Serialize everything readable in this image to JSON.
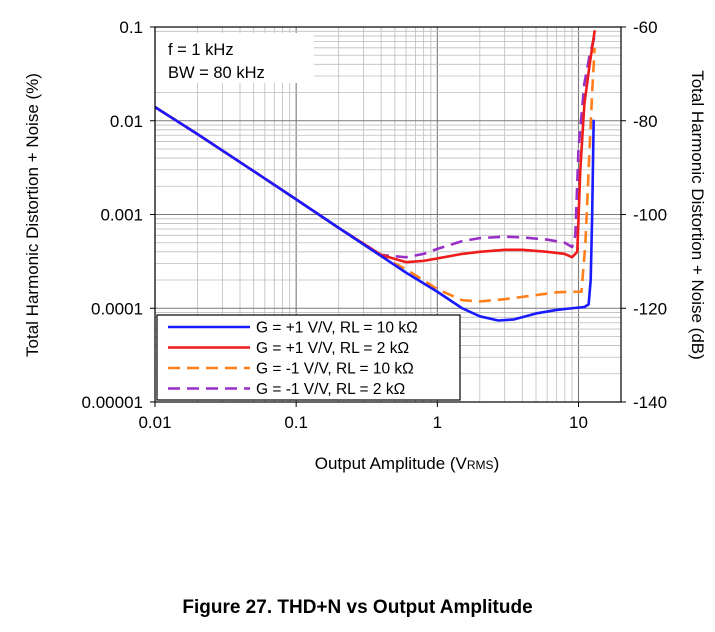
{
  "figure_caption": "Figure 27. THD+N vs Output Amplitude",
  "chart_data": {
    "type": "line",
    "title": "",
    "xlabel_main": "Output Amplitude (V",
    "xlabel_sub": "RMS",
    "xlabel_end": ")",
    "ylabel_left": "Total Harmonic Distortion + Noise (%)",
    "ylabel_right": "Total Harmonic Distortion + Noise (dB)",
    "x_scale": "log",
    "y_scale": "log",
    "xlim": [
      0.01,
      20
    ],
    "ylim": [
      1e-05,
      0.1
    ],
    "x_ticks": [
      "0.01",
      "0.1",
      "1",
      "10"
    ],
    "y_ticks_left": [
      "0.00001",
      "0.0001",
      "0.001",
      "0.01",
      "0.1"
    ],
    "y_ticks_right": [
      "-140",
      "-120",
      "-100",
      "-80",
      "-60"
    ],
    "grid": true,
    "annotations": [
      "f = 1 kHz",
      "BW = 80 kHz"
    ],
    "legend_position": "bottom-left",
    "series": [
      {
        "name": "G = +1 V/V, RL = 10 kΩ",
        "color": "#1a1aff",
        "dash": "solid",
        "points": [
          [
            0.01,
            0.014
          ],
          [
            0.02,
            0.0072
          ],
          [
            0.05,
            0.0029
          ],
          [
            0.1,
            0.00145
          ],
          [
            0.2,
            0.00072
          ],
          [
            0.4,
            0.00036
          ],
          [
            0.6,
            0.00024
          ],
          [
            1.0,
            0.00015
          ],
          [
            1.5,
            0.0001
          ],
          [
            2.0,
            8.2e-05
          ],
          [
            2.7,
            7.4e-05
          ],
          [
            3.5,
            7.6e-05
          ],
          [
            5.0,
            8.8e-05
          ],
          [
            7.0,
            9.6e-05
          ],
          [
            9.0,
            0.0001
          ],
          [
            11.0,
            0.000103
          ],
          [
            11.8,
            0.00011
          ],
          [
            12.2,
            0.0002
          ],
          [
            12.5,
            0.001
          ],
          [
            12.8,
            0.01
          ]
        ]
      },
      {
        "name": "G = +1 V/V, RL = 2 kΩ",
        "color": "#ee1c1c",
        "dash": "solid",
        "points": [
          [
            0.01,
            0.014
          ],
          [
            0.02,
            0.0072
          ],
          [
            0.05,
            0.0029
          ],
          [
            0.1,
            0.00145
          ],
          [
            0.2,
            0.00072
          ],
          [
            0.4,
            0.00037
          ],
          [
            0.6,
            0.00031
          ],
          [
            0.8,
            0.00032
          ],
          [
            1.0,
            0.00034
          ],
          [
            1.5,
            0.00038
          ],
          [
            2.0,
            0.0004
          ],
          [
            3.0,
            0.00042
          ],
          [
            4.0,
            0.00042
          ],
          [
            6.0,
            0.0004
          ],
          [
            8.0,
            0.00038
          ],
          [
            9.0,
            0.00035
          ],
          [
            9.8,
            0.0004
          ],
          [
            10.3,
            0.003
          ],
          [
            11.0,
            0.015
          ],
          [
            12.0,
            0.04
          ],
          [
            13.0,
            0.09
          ]
        ]
      },
      {
        "name": "G = -1 V/V, RL = 10 kΩ",
        "color": "#ff7f1a",
        "dash": "dashed",
        "points": [
          [
            0.01,
            0.014
          ],
          [
            0.02,
            0.0072
          ],
          [
            0.05,
            0.0029
          ],
          [
            0.1,
            0.00145
          ],
          [
            0.2,
            0.00072
          ],
          [
            0.4,
            0.00036
          ],
          [
            0.6,
            0.00026
          ],
          [
            1.0,
            0.00016
          ],
          [
            1.5,
            0.000122
          ],
          [
            2.0,
            0.000118
          ],
          [
            3.0,
            0.000125
          ],
          [
            5.0,
            0.000138
          ],
          [
            7.0,
            0.000148
          ],
          [
            9.0,
            0.00015
          ],
          [
            10.5,
            0.00015
          ],
          [
            11.2,
            0.0005
          ],
          [
            11.8,
            0.003
          ],
          [
            12.5,
            0.02
          ],
          [
            13.0,
            0.06
          ]
        ]
      },
      {
        "name": "G = -1 V/V, RL = 2 kΩ",
        "color": "#9a2fc8",
        "dash": "dashed",
        "points": [
          [
            0.01,
            0.014
          ],
          [
            0.02,
            0.0072
          ],
          [
            0.05,
            0.0029
          ],
          [
            0.1,
            0.00145
          ],
          [
            0.2,
            0.00072
          ],
          [
            0.4,
            0.00037
          ],
          [
            0.6,
            0.00035
          ],
          [
            0.8,
            0.00038
          ],
          [
            1.0,
            0.00043
          ],
          [
            1.5,
            0.00052
          ],
          [
            2.0,
            0.00056
          ],
          [
            3.0,
            0.00058
          ],
          [
            4.0,
            0.00057
          ],
          [
            6.0,
            0.00054
          ],
          [
            8.0,
            0.0005
          ],
          [
            9.0,
            0.00045
          ],
          [
            9.5,
            0.0006
          ],
          [
            10.0,
            0.005
          ],
          [
            11.0,
            0.025
          ],
          [
            12.0,
            0.05
          ],
          [
            13.0,
            0.08
          ]
        ]
      }
    ]
  }
}
